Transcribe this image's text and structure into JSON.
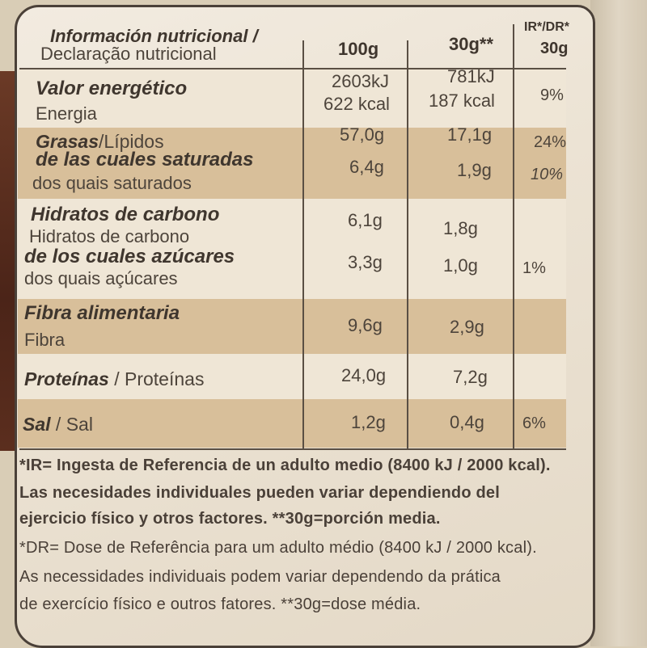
{
  "header": {
    "title_es": "Información nutricional /",
    "title_pt": "Declaração nutricional",
    "col_100g": "100g",
    "col_30g": "30g**",
    "col_ir_top": "IR*/DR*",
    "col_ir_bottom": "30g"
  },
  "rows": [
    {
      "label_es": "Valor energético",
      "label_pt": "Energia",
      "v100": "2603kJ",
      "v100b": "622 kcal",
      "v30": "781kJ",
      "v30b": "187 kcal",
      "ir": "9%"
    },
    {
      "label_es": "Grasas",
      "label_es_rest": "/Lípidos",
      "v100": "57,0g",
      "v30": "17,1g",
      "ir": "24%"
    },
    {
      "label_es": "de las cuales saturadas",
      "label_pt": "dos quais saturados",
      "v100": "6,4g",
      "v30": "1,9g",
      "ir": "10%"
    },
    {
      "label_es": "Hidratos de carbono",
      "label_pt": "Hidratos de carbono",
      "v100": "6,1g",
      "v30": "1,8g",
      "ir": ""
    },
    {
      "label_es": "de los cuales azúcares",
      "label_pt": "dos quais açúcares",
      "v100": "3,3g",
      "v30": "1,0g",
      "ir": "1%"
    },
    {
      "label_es": "Fibra alimentaria",
      "label_pt": "Fibra",
      "v100": "9,6g",
      "v30": "2,9g",
      "ir": ""
    },
    {
      "label_es": "Proteínas",
      "label_pt": "/ Proteínas",
      "v100": "24,0g",
      "v30": "7,2g",
      "ir": ""
    },
    {
      "label_es": "Sal",
      "label_pt": "/ Sal",
      "v100": "1,2g",
      "v30": "0,4g",
      "ir": "6%"
    }
  ],
  "footnotes": {
    "es_line1": "*IR= Ingesta de Referencia de un adulto medio (8400 kJ / 2000 kcal).",
    "es_line2": "Las necesidades individuales pueden variar dependiendo del",
    "es_line3": "ejercicio físico y otros factores. **30g=porción media.",
    "pt_line1": "*DR= Dose de Referência para um adulto médio (8400 kJ / 2000 kcal).",
    "pt_line2": "As necessidades individuais podem variar dependendo da prática",
    "pt_line3": "de exercício físico e outros fatores. **30g=dose média."
  },
  "colors": {
    "band_dark": "#d8bf9a",
    "band_light": "#efe6d6",
    "ink": "#4a4038",
    "background_left": "#5b2e1e"
  }
}
